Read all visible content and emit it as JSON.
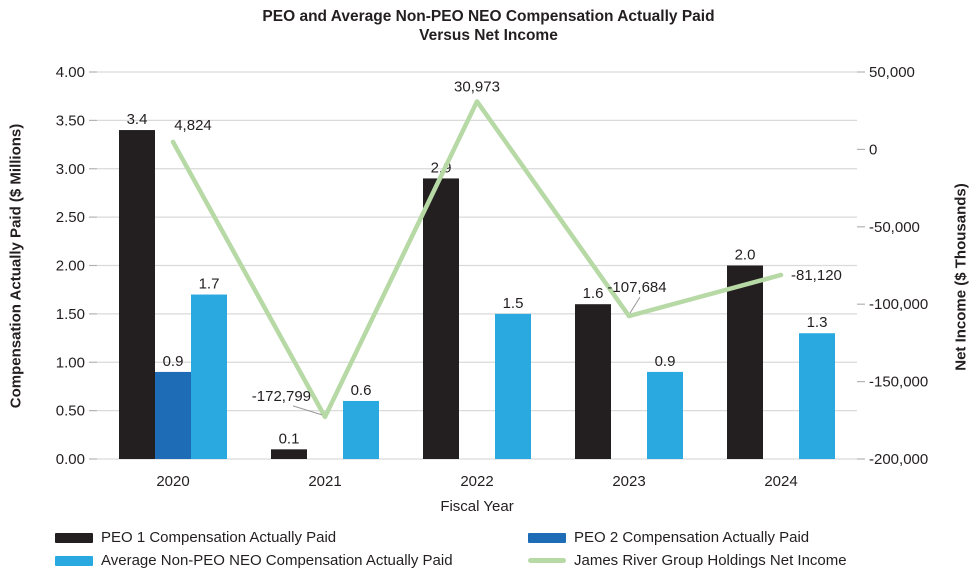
{
  "title": {
    "line1": "PEO and Average Non-PEO NEO Compensation Actually Paid",
    "line2": "Versus Net Income"
  },
  "colors": {
    "peo1_bar": "#231f20",
    "peo2_bar": "#1e6cb5",
    "avg_bar": "#2aa9e0",
    "net_income_line": "#b7d9a5",
    "gridline": "#dadada",
    "tick_mark": "#b3b3b3",
    "leader_line": "#999999",
    "text": "#231f20"
  },
  "chart_data": {
    "type": "combo-bar-line",
    "categories": [
      "2020",
      "2021",
      "2022",
      "2023",
      "2024"
    ],
    "bar_series": [
      {
        "name": "PEO 1 Compensation Actually Paid",
        "color_key": "peo1_bar",
        "values": [
          3.4,
          0.1,
          2.9,
          1.6,
          2.0
        ],
        "labels": [
          "3.4",
          "0.1",
          "2.9",
          "1.6",
          "2.0"
        ]
      },
      {
        "name": "PEO 2 Compensation Actually Paid",
        "color_key": "peo2_bar",
        "values": [
          0.9,
          null,
          null,
          null,
          null
        ],
        "labels": [
          "0.9",
          "",
          "",
          "",
          ""
        ]
      },
      {
        "name": "Average Non-PEO NEO Compensation Actually Paid",
        "color_key": "avg_bar",
        "values": [
          1.7,
          0.6,
          1.5,
          0.9,
          1.3
        ],
        "labels": [
          "1.7",
          "0.6",
          "1.5",
          "0.9",
          "1.3"
        ]
      }
    ],
    "line_series": {
      "name": "James River Group Holdings Net Income",
      "color_key": "net_income_line",
      "values": [
        4824,
        -172799,
        30973,
        -107684,
        -81120
      ],
      "labels": [
        "4,824",
        "-172,799",
        "30,973",
        "-107,684",
        "-81,120"
      ]
    },
    "left_axis": {
      "title": "Compensation Actually Paid ($ Millions)",
      "min": 0,
      "max": 4,
      "step": 0.5,
      "tick_labels": [
        "0.00",
        "0.50",
        "1.00",
        "1.50",
        "2.00",
        "2.50",
        "3.00",
        "3.50",
        "4.00"
      ]
    },
    "right_axis": {
      "title": "Net Income ($ Thousands)",
      "min": -200000,
      "max": 50000,
      "step": 50000,
      "tick_labels_top_down": [
        "50,000",
        "0",
        "-50,000",
        "-100,000",
        "-150,000",
        "-200,000"
      ]
    },
    "x_axis": {
      "title": "Fiscal Year"
    },
    "grid": true,
    "legend_position": "bottom"
  },
  "legend": {
    "items": [
      {
        "label": "PEO 1 Compensation Actually Paid",
        "swatch": "bar",
        "color_key": "peo1_bar"
      },
      {
        "label": "PEO 2 Compensation Actually Paid",
        "swatch": "bar",
        "color_key": "peo2_bar"
      },
      {
        "label": "Average Non-PEO NEO Compensation Actually Paid",
        "swatch": "bar",
        "color_key": "avg_bar"
      },
      {
        "label": "James River Group Holdings Net Income",
        "swatch": "line",
        "color_key": "net_income_line"
      }
    ]
  }
}
